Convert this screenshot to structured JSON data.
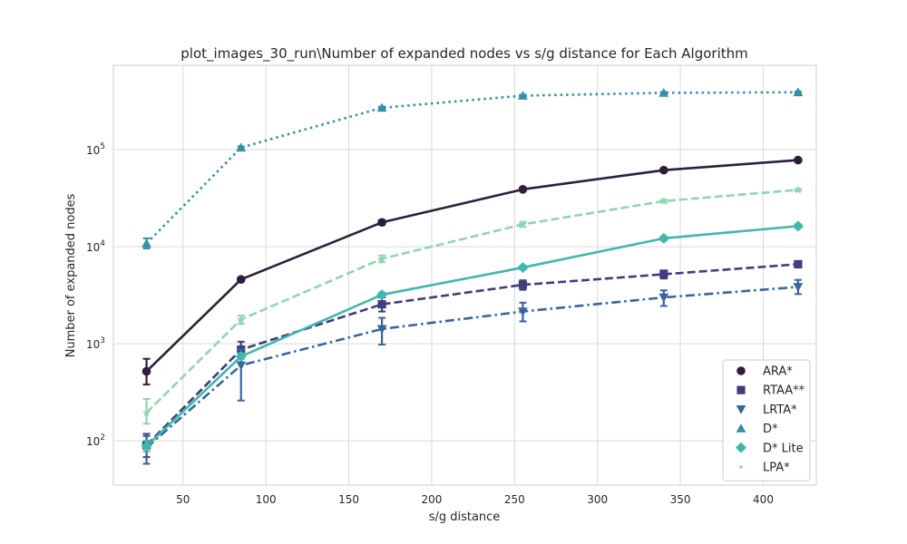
{
  "chart_data": {
    "type": "line",
    "title": "plot_images_30_run\\Number of expanded nodes vs s/g distance for Each Algorithm",
    "xlabel": "s/g distance",
    "ylabel": "Number of expanded nodes",
    "x_scale": "linear",
    "y_scale": "log",
    "xlim": [
      8,
      432
    ],
    "ylim": [
      35,
      740000
    ],
    "x_ticks": [
      50,
      100,
      150,
      200,
      250,
      300,
      350,
      400
    ],
    "x_tick_labels": [
      "50",
      "100",
      "150",
      "200",
      "250",
      "300",
      "350",
      "400"
    ],
    "y_ticks": [
      100,
      1000,
      10000,
      100000
    ],
    "y_tick_labels": [
      "10",
      "10",
      "10",
      "10"
    ],
    "y_tick_exponents": [
      "2",
      "3",
      "4",
      "5"
    ],
    "grid": true,
    "legend_position": "bottom-right",
    "x": [
      28,
      85,
      170,
      255,
      340,
      421
    ],
    "series": [
      {
        "name": "ARA*",
        "color": "#2e1e3b",
        "marker": "circle",
        "dash": "solid",
        "values": [
          520,
          4600,
          17800,
          39000,
          61500,
          78000
        ],
        "err_low": [
          380,
          4400,
          16800,
          37500,
          59000,
          75500
        ],
        "err_high": [
          700,
          4800,
          18800,
          40500,
          64000,
          80500
        ]
      },
      {
        "name": "RTAA**",
        "color": "#413d7b",
        "marker": "square",
        "dash": "dashed",
        "values": [
          90,
          870,
          2550,
          4050,
          5200,
          6600
        ],
        "err_low": [
          68,
          730,
          2150,
          3600,
          4700,
          6100
        ],
        "err_high": [
          118,
          1050,
          3000,
          4500,
          5700,
          7100
        ]
      },
      {
        "name": "LRTA*",
        "color": "#37659e",
        "marker": "triangle-down",
        "dash": "dashdot",
        "values": [
          85,
          600,
          1420,
          2150,
          3000,
          3850
        ],
        "err_low": [
          58,
          260,
          980,
          1700,
          2450,
          3250
        ],
        "err_high": [
          112,
          870,
          1850,
          2650,
          3550,
          4550
        ]
      },
      {
        "name": "D*",
        "color": "#348fa7",
        "marker": "triangle-up",
        "dash": "dotted",
        "values": [
          10800,
          105000,
          270000,
          360000,
          385000,
          390000
        ],
        "err_low": [
          9600,
          102000,
          262000,
          352000,
          377000,
          382000
        ],
        "err_high": [
          12200,
          108000,
          278000,
          368000,
          393000,
          398000
        ]
      },
      {
        "name": "D* Lite",
        "color": "#40b7ad",
        "marker": "diamond",
        "dash": "solid",
        "values": [
          88,
          740,
          3200,
          6100,
          12200,
          16300
        ],
        "err_low": [
          78,
          700,
          3050,
          5800,
          11600,
          15500
        ],
        "err_high": [
          100,
          800,
          3350,
          6400,
          12800,
          17000
        ]
      },
      {
        "name": "LPA*",
        "color": "#8fd6ae",
        "marker": "star",
        "dash": "dashed",
        "values": [
          195,
          1780,
          7500,
          17000,
          29500,
          38500
        ],
        "err_low": [
          150,
          1600,
          6900,
          16000,
          28500,
          37500
        ],
        "err_high": [
          270,
          1950,
          8100,
          18000,
          30500,
          39500
        ]
      }
    ]
  }
}
